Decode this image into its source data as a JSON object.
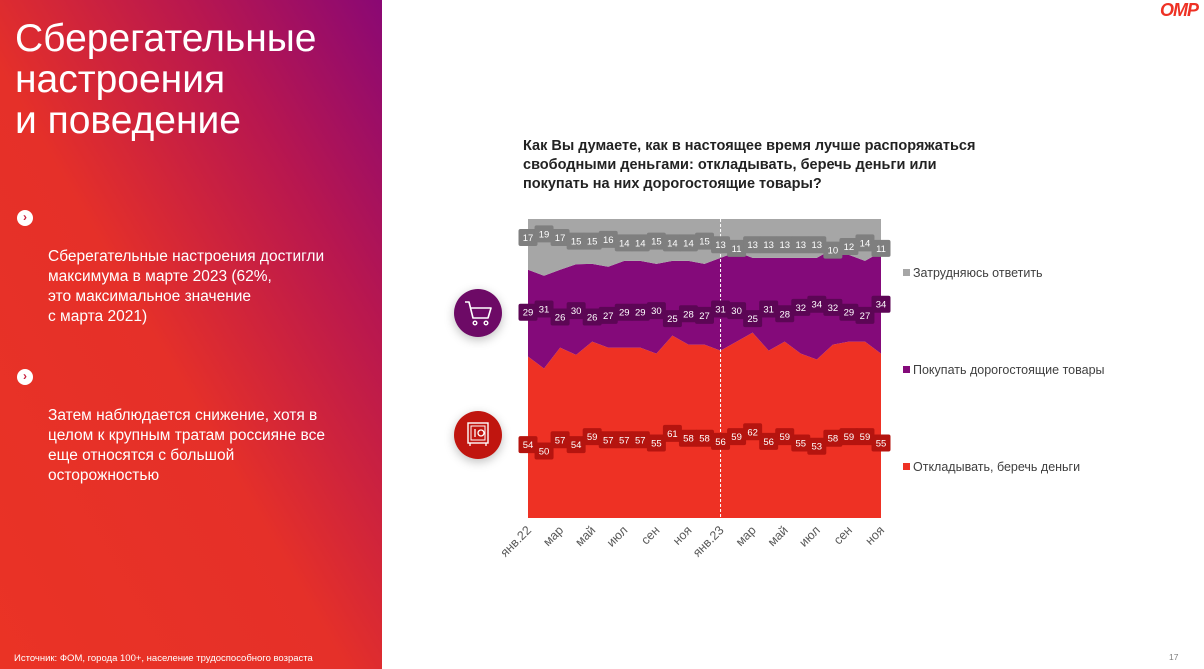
{
  "slide": {
    "title": "Сберегательные\nнастроения\nи поведение",
    "bullets": [
      "Сберегательные настроения достигли\nмаксимума в марте 2023 (62%,\nэто максимальное значение\nс марта 2021)",
      "Затем наблюдается снижение, хотя в\nцелом к крупным тратам россияне все\nеще относятся с большой\nосторожностью"
    ],
    "source": "Источник: ФОМ, города 100+, население трудоспособного возраста",
    "page_number": "17",
    "logo_text": "ОМР",
    "colors": {
      "accent_red": "#ee3124",
      "accent_purple": "#840a7a",
      "neutral_gray": "#a6a6a6"
    },
    "icons": {
      "purchase": "shopping-cart-icon",
      "savings": "safe-icon"
    }
  },
  "chart_data": {
    "type": "area",
    "stacked": true,
    "normalized_percent": true,
    "title": "Как Вы думаете, как в настоящее время лучше распоряжаться\nсвободными деньгами: откладывать, беречь деньги или\nпокупать на них дорогостоящие товары?",
    "xlabel": "",
    "ylabel": "",
    "ylim": [
      0,
      100
    ],
    "grid": false,
    "legend_position": "right",
    "divider_at": "янв.23",
    "x": [
      "янв.22",
      "фев.22",
      "мар",
      "апр.22",
      "май",
      "июн.22",
      "июл",
      "авг.22",
      "сен",
      "окт.22",
      "ноя",
      "дек.22",
      "янв.23",
      "фев.23",
      "мар",
      "апр.23",
      "май",
      "июн.23",
      "июл",
      "авг.23",
      "сен",
      "окт.23",
      "ноя"
    ],
    "tick_labels": [
      "янв.22",
      "",
      "мар",
      "",
      "май",
      "",
      "июл",
      "",
      "сен",
      "",
      "ноя",
      "",
      "янв.23",
      "",
      "мар",
      "",
      "май",
      "",
      "июл",
      "",
      "сен",
      "",
      "ноя"
    ],
    "series": [
      {
        "name": "Откладывать, беречь деньги",
        "color": "#ee3124",
        "label_color": "#b5140f",
        "values": [
          54,
          50,
          57,
          54,
          59,
          57,
          57,
          57,
          55,
          61,
          58,
          58,
          56,
          59,
          62,
          56,
          59,
          55,
          53,
          58,
          59,
          59,
          55
        ]
      },
      {
        "name": "Покупать дорогостоящие товары",
        "color": "#840a7a",
        "label_color": "#5c0655",
        "values": [
          29,
          31,
          26,
          30,
          26,
          27,
          29,
          29,
          30,
          25,
          28,
          27,
          31,
          30,
          25,
          31,
          28,
          32,
          34,
          32,
          29,
          27,
          34
        ]
      },
      {
        "name": "Затрудняюсь ответить",
        "color": "#a6a6a6",
        "label_color": "#7f7f7f",
        "values": [
          17,
          19,
          17,
          15,
          15,
          16,
          14,
          14,
          15,
          14,
          14,
          15,
          13,
          11,
          13,
          13,
          13,
          13,
          13,
          10,
          12,
          14,
          11
        ]
      }
    ]
  }
}
